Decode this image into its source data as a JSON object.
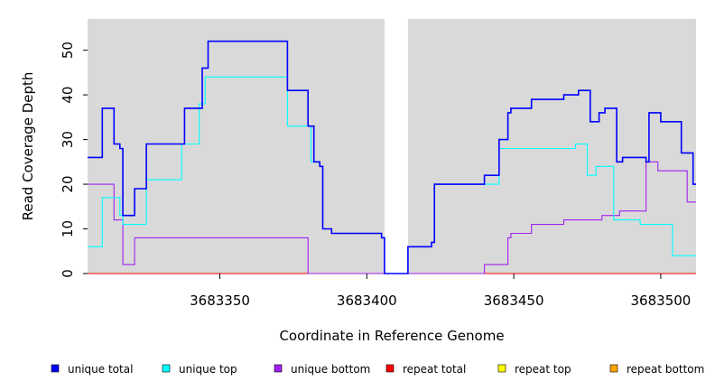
{
  "chart_data": {
    "type": "line",
    "step": true,
    "title": "",
    "xlabel": "Coordinate in Reference Genome",
    "ylabel": "Read Coverage Depth",
    "xlim": [
      3683305,
      3683512
    ],
    "ylim": [
      0,
      57
    ],
    "x_ticks": [
      3683350,
      3683400,
      3683450,
      3683500
    ],
    "x_tick_labels": [
      "3683350",
      "3683400",
      "3683450",
      "3683500"
    ],
    "y_ticks": [
      0,
      10,
      20,
      30,
      40,
      50
    ],
    "y_tick_labels": [
      "0",
      "10",
      "20",
      "30",
      "40",
      "50"
    ],
    "gap_region": [
      3683406,
      3683414
    ],
    "background": "#d9d9d9",
    "legend_position": "bottom",
    "series": [
      {
        "name": "unique total",
        "color": "#0000ff",
        "points": [
          [
            3683305,
            26
          ],
          [
            3683310,
            37
          ],
          [
            3683314,
            29
          ],
          [
            3683316,
            28
          ],
          [
            3683317,
            13
          ],
          [
            3683321,
            19
          ],
          [
            3683325,
            29
          ],
          [
            3683338,
            37
          ],
          [
            3683344,
            46
          ],
          [
            3683346,
            52
          ],
          [
            3683373,
            41
          ],
          [
            3683380,
            33
          ],
          [
            3683382,
            25
          ],
          [
            3683384,
            24
          ],
          [
            3683385,
            10
          ],
          [
            3683388,
            9
          ],
          [
            3683405,
            8
          ],
          [
            3683406,
            0
          ],
          [
            3683414,
            6
          ],
          [
            3683422,
            7
          ],
          [
            3683423,
            20
          ],
          [
            3683440,
            22
          ],
          [
            3683445,
            30
          ],
          [
            3683448,
            36
          ],
          [
            3683449,
            37
          ],
          [
            3683456,
            39
          ],
          [
            3683467,
            40
          ],
          [
            3683472,
            41
          ],
          [
            3683476,
            34
          ],
          [
            3683479,
            36
          ],
          [
            3683481,
            37
          ],
          [
            3683485,
            25
          ],
          [
            3683487,
            26
          ],
          [
            3683495,
            25
          ],
          [
            3683496,
            36
          ],
          [
            3683500,
            34
          ],
          [
            3683507,
            27
          ],
          [
            3683511,
            20
          ],
          [
            3683512,
            20
          ]
        ]
      },
      {
        "name": "unique top",
        "color": "#00ffff",
        "points": [
          [
            3683305,
            6
          ],
          [
            3683310,
            17
          ],
          [
            3683316,
            13
          ],
          [
            3683317,
            11
          ],
          [
            3683325,
            21
          ],
          [
            3683337,
            29
          ],
          [
            3683343,
            38
          ],
          [
            3683345,
            44
          ],
          [
            3683373,
            33
          ],
          [
            3683381,
            25
          ],
          [
            3683384,
            24
          ],
          [
            3683385,
            10
          ],
          [
            3683388,
            9
          ],
          [
            3683405,
            8
          ],
          [
            3683406,
            0
          ],
          [
            3683414,
            6
          ],
          [
            3683422,
            7
          ],
          [
            3683423,
            20
          ],
          [
            3683440,
            20
          ],
          [
            3683445,
            28
          ],
          [
            3683471,
            29
          ],
          [
            3683475,
            22
          ],
          [
            3683478,
            24
          ],
          [
            3683484,
            12
          ],
          [
            3683493,
            11
          ],
          [
            3683504,
            4
          ],
          [
            3683512,
            4
          ]
        ]
      },
      {
        "name": "unique bottom",
        "color": "#a020f0",
        "points": [
          [
            3683305,
            20
          ],
          [
            3683314,
            12
          ],
          [
            3683317,
            2
          ],
          [
            3683321,
            8
          ],
          [
            3683380,
            0
          ],
          [
            3683440,
            2
          ],
          [
            3683448,
            8
          ],
          [
            3683449,
            9
          ],
          [
            3683456,
            11
          ],
          [
            3683467,
            12
          ],
          [
            3683480,
            13
          ],
          [
            3683486,
            14
          ],
          [
            3683495,
            25
          ],
          [
            3683499,
            23
          ],
          [
            3683509,
            16
          ],
          [
            3683512,
            16
          ]
        ]
      },
      {
        "name": "repeat total",
        "color": "#ff0000",
        "points": [
          [
            3683305,
            0
          ],
          [
            3683512,
            0
          ]
        ]
      },
      {
        "name": "repeat top",
        "color": "#ffff00",
        "points": [
          [
            3683305,
            0
          ],
          [
            3683512,
            0
          ]
        ]
      },
      {
        "name": "repeat bottom",
        "color": "#ffa500",
        "points": [
          [
            3683305,
            0
          ],
          [
            3683512,
            0
          ]
        ]
      }
    ]
  }
}
